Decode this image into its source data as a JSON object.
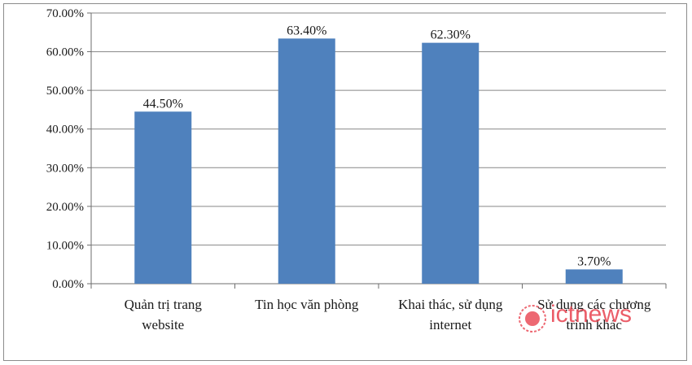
{
  "chart_data": {
    "type": "bar",
    "categories": [
      [
        "Quản trị trang",
        "website"
      ],
      [
        "Tin học văn phòng"
      ],
      [
        "Khai thác, sử dụng",
        "internet"
      ],
      [
        "Sử dụng các chương",
        "trình khác"
      ]
    ],
    "values": [
      44.5,
      63.4,
      62.3,
      3.7
    ],
    "data_labels": [
      "44.50%",
      "63.40%",
      "62.30%",
      "3.70%"
    ],
    "y_ticks": [
      "0.00%",
      "10.00%",
      "20.00%",
      "30.00%",
      "40.00%",
      "50.00%",
      "60.00%",
      "70.00%"
    ],
    "ylim": [
      0,
      70
    ],
    "grid": true,
    "bar_color": "#4f81bd",
    "gridline_color": "#878787"
  },
  "watermark": {
    "text": "ictnews",
    "color": "#e8424f",
    "icon": "ictnews-logo-icon"
  }
}
